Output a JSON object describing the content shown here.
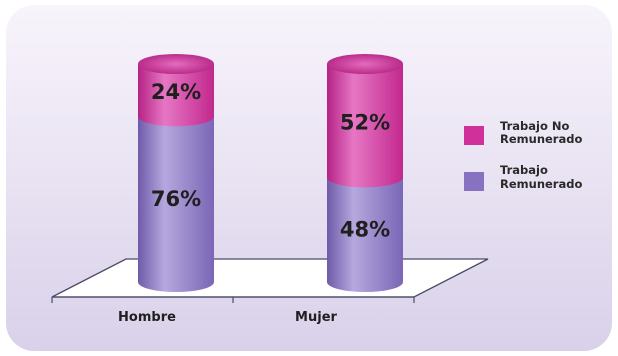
{
  "chart_data": {
    "type": "bar",
    "stacked": true,
    "percent_stacked": true,
    "categories": [
      "Hombre",
      "Mujer"
    ],
    "series": [
      {
        "name": "Trabajo No Remunerado",
        "values": [
          24,
          52
        ],
        "labels": [
          "24%",
          "52%"
        ],
        "color": "#d0309a"
      },
      {
        "name": "Trabajo Remunerado",
        "values": [
          76,
          48
        ],
        "labels": [
          "76%",
          "48%"
        ],
        "color": "#8672c0"
      }
    ],
    "ylim": [
      0,
      100
    ],
    "legend": {
      "position": "right",
      "entries": [
        {
          "line1": "Trabajo No",
          "line2": "Remunerado",
          "color": "#d0309a"
        },
        {
          "line1": "Trabajo",
          "line2": "Remunerado",
          "color": "#8672c0"
        }
      ]
    },
    "title": "",
    "xlabel": "",
    "ylabel": ""
  },
  "colors": {
    "background_top": "#f8f4fb",
    "background_bottom": "#d9d1ea",
    "pink": "#d0309a",
    "pink_light": "#e677c4",
    "purple": "#8672c0",
    "purple_light": "#b6a8de",
    "label_text": "#1f1f1f"
  }
}
